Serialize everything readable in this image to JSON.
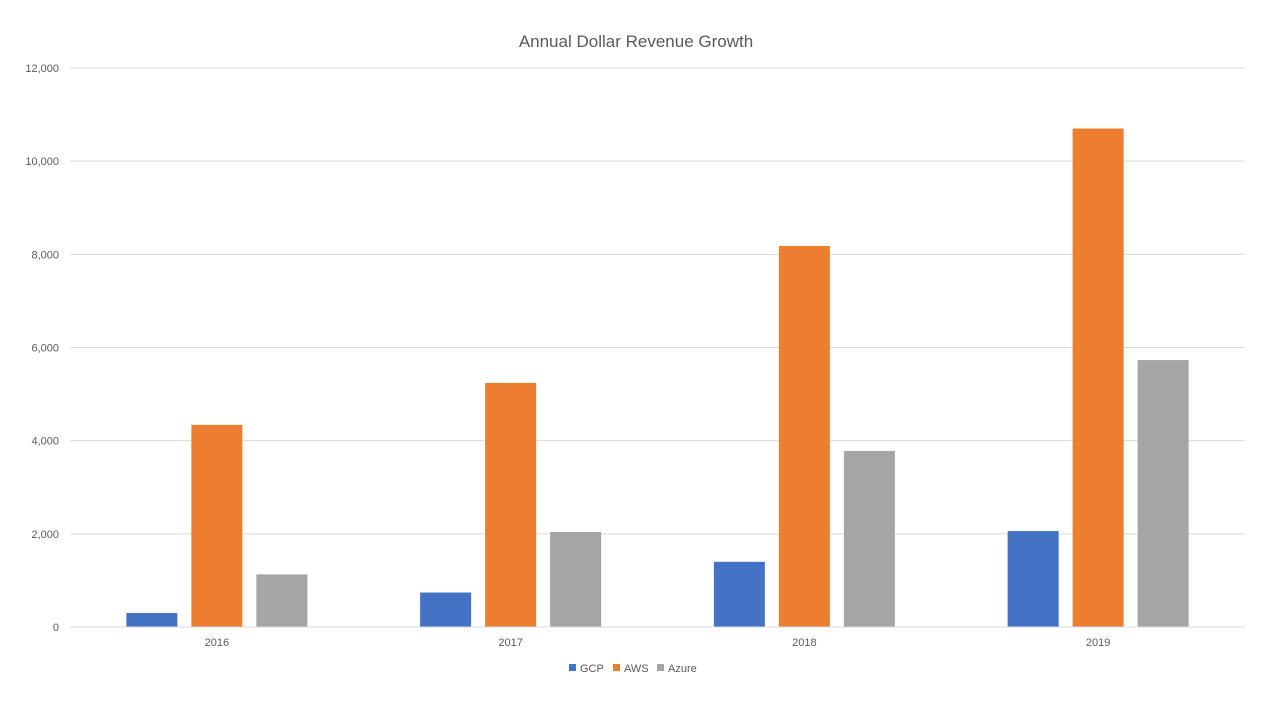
{
  "chart_data": {
    "type": "bar",
    "title": "Annual Dollar Revenue Growth",
    "xlabel": "",
    "ylabel": "",
    "categories": [
      "2016",
      "2017",
      "2018",
      "2019"
    ],
    "series": [
      {
        "name": "GCP",
        "color": "#4472c4",
        "values": [
          300,
          740,
          1400,
          2060
        ]
      },
      {
        "name": "AWS",
        "color": "#ed7d31",
        "values": [
          4340,
          5240,
          8180,
          10700
        ]
      },
      {
        "name": "Azure",
        "color": "#a5a5a5",
        "values": [
          1130,
          2040,
          3780,
          5730
        ]
      }
    ],
    "ylim": [
      0,
      12000
    ],
    "yticks": [
      "0",
      "2,000",
      "4,000",
      "6,000",
      "8,000",
      "10,000",
      "12,000"
    ],
    "grid": true,
    "legend_position": "bottom"
  }
}
